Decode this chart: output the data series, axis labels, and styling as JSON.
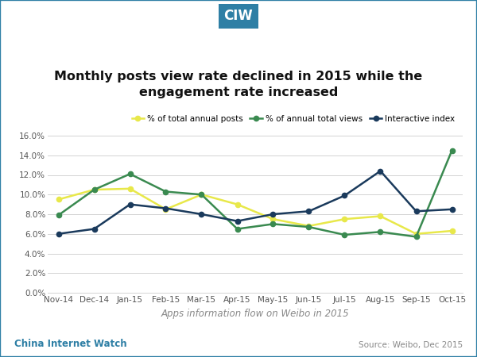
{
  "months": [
    "Nov-14",
    "Dec-14",
    "Jan-15",
    "Feb-15",
    "Mar-15",
    "Apr-15",
    "May-15",
    "Jun-15",
    "Jul-15",
    "Aug-15",
    "Sep-15",
    "Oct-15"
  ],
  "posts": [
    0.095,
    0.105,
    0.106,
    0.085,
    0.1,
    0.09,
    0.075,
    0.068,
    0.075,
    0.078,
    0.06,
    0.063
  ],
  "views": [
    0.079,
    0.105,
    0.121,
    0.103,
    0.1,
    0.065,
    0.07,
    0.067,
    0.059,
    0.062,
    0.057,
    0.145
  ],
  "interactive": [
    0.06,
    0.065,
    0.09,
    0.086,
    0.08,
    0.073,
    0.08,
    0.083,
    0.099,
    0.124,
    0.083,
    0.085
  ],
  "posts_color": "#e8e84a",
  "views_color": "#3a8a50",
  "interactive_color": "#1a3a5c",
  "title_line1": "Monthly posts view rate declined in 2015 while the",
  "title_line2": "engagement rate increased",
  "xlabel": "Apps information flow on Weibo in 2015",
  "ylim": [
    0.0,
    0.16
  ],
  "yticks": [
    0.0,
    0.02,
    0.04,
    0.06,
    0.08,
    0.1,
    0.12,
    0.14,
    0.16
  ],
  "legend_labels": [
    "% of total annual posts",
    "% of annual total views",
    "Interactive index"
  ],
  "header_text": "CIW",
  "header_bg": "#2e7fa5",
  "footer_left": "China Internet Watch",
  "footer_right": "Source: Weibo, Dec 2015",
  "background_color": "#ffffff",
  "border_color": "#2e7fa5"
}
